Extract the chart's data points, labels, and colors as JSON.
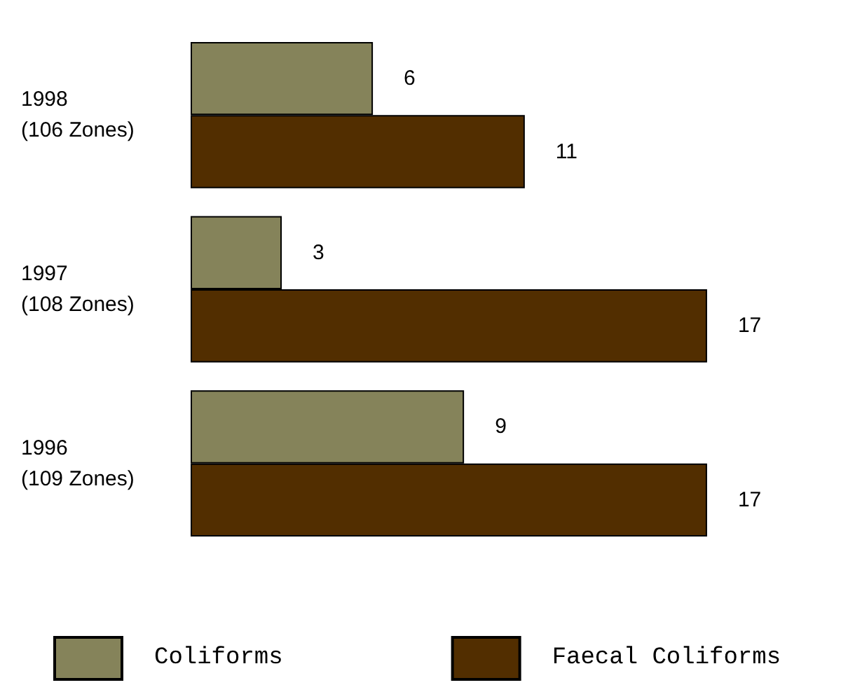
{
  "chart_data": {
    "type": "bar",
    "orientation": "horizontal",
    "categories": [
      "1998\n(106 Zones)",
      "1997\n(108 Zones)",
      "1996\n(109 Zones)"
    ],
    "series": [
      {
        "name": "Coliforms",
        "color": "#85835a",
        "values": [
          6,
          3,
          9
        ]
      },
      {
        "name": "Faecal Coliforms",
        "color": "#522e00",
        "values": [
          11,
          17,
          17
        ]
      }
    ],
    "data_labels": true,
    "legend": "bottom"
  }
}
